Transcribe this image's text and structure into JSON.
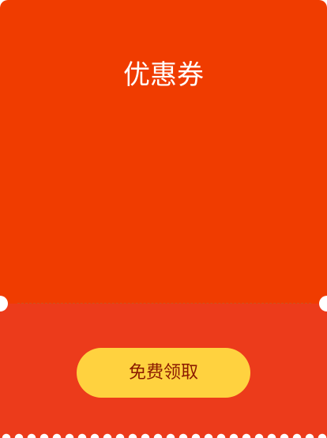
{
  "title": "优惠券",
  "button": "免费领取"
}
